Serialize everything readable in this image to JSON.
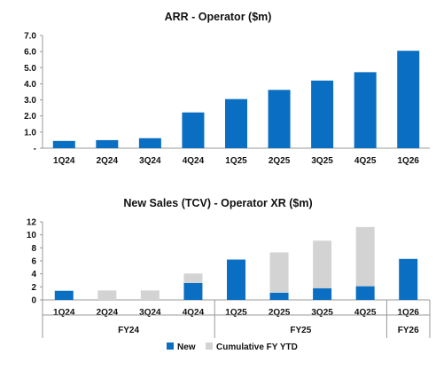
{
  "colors": {
    "new": "#0a6ec2",
    "cumulative": "#d3d3d3",
    "axis": "#999999",
    "text": "#111111"
  },
  "chart_data": [
    {
      "type": "bar",
      "title": "ARR - Operator ($m)",
      "categories": [
        "1Q24",
        "2Q24",
        "3Q24",
        "4Q24",
        "1Q25",
        "2Q25",
        "3Q25",
        "4Q25",
        "1Q26"
      ],
      "values": [
        0.45,
        0.5,
        0.62,
        2.22,
        3.05,
        3.62,
        4.2,
        4.72,
        6.05
      ],
      "ylim": [
        0,
        7
      ],
      "yticks": [
        "-",
        "1.0",
        "2.0",
        "3.0",
        "4.0",
        "5.0",
        "6.0",
        "7.0"
      ],
      "grid": false
    },
    {
      "type": "bar",
      "stacked": true,
      "title": "New Sales (TCV) - Operator XR ($m)",
      "categories": [
        "1Q24",
        "2Q24",
        "3Q24",
        "4Q24",
        "1Q25",
        "2Q25",
        "3Q25",
        "4Q25",
        "1Q26"
      ],
      "series": [
        {
          "name": "New",
          "values": [
            1.4,
            0,
            0,
            2.6,
            6.2,
            1.1,
            1.8,
            2.1,
            6.3
          ]
        },
        {
          "name": "Cumulative FY YTD",
          "values": [
            0,
            1.45,
            1.45,
            1.45,
            0,
            6.2,
            7.3,
            9.1,
            0
          ]
        }
      ],
      "ylim": [
        0,
        12
      ],
      "yticks": [
        "0",
        "2",
        "4",
        "6",
        "8",
        "10",
        "12"
      ],
      "fiscal_years": [
        {
          "label": "FY24",
          "categories": [
            "1Q24",
            "2Q24",
            "3Q24",
            "4Q24"
          ]
        },
        {
          "label": "FY25",
          "categories": [
            "1Q25",
            "2Q25",
            "3Q25",
            "4Q25"
          ]
        },
        {
          "label": "FY26",
          "categories": [
            "1Q26"
          ]
        }
      ],
      "legend_position": "bottom",
      "grid": false
    }
  ]
}
